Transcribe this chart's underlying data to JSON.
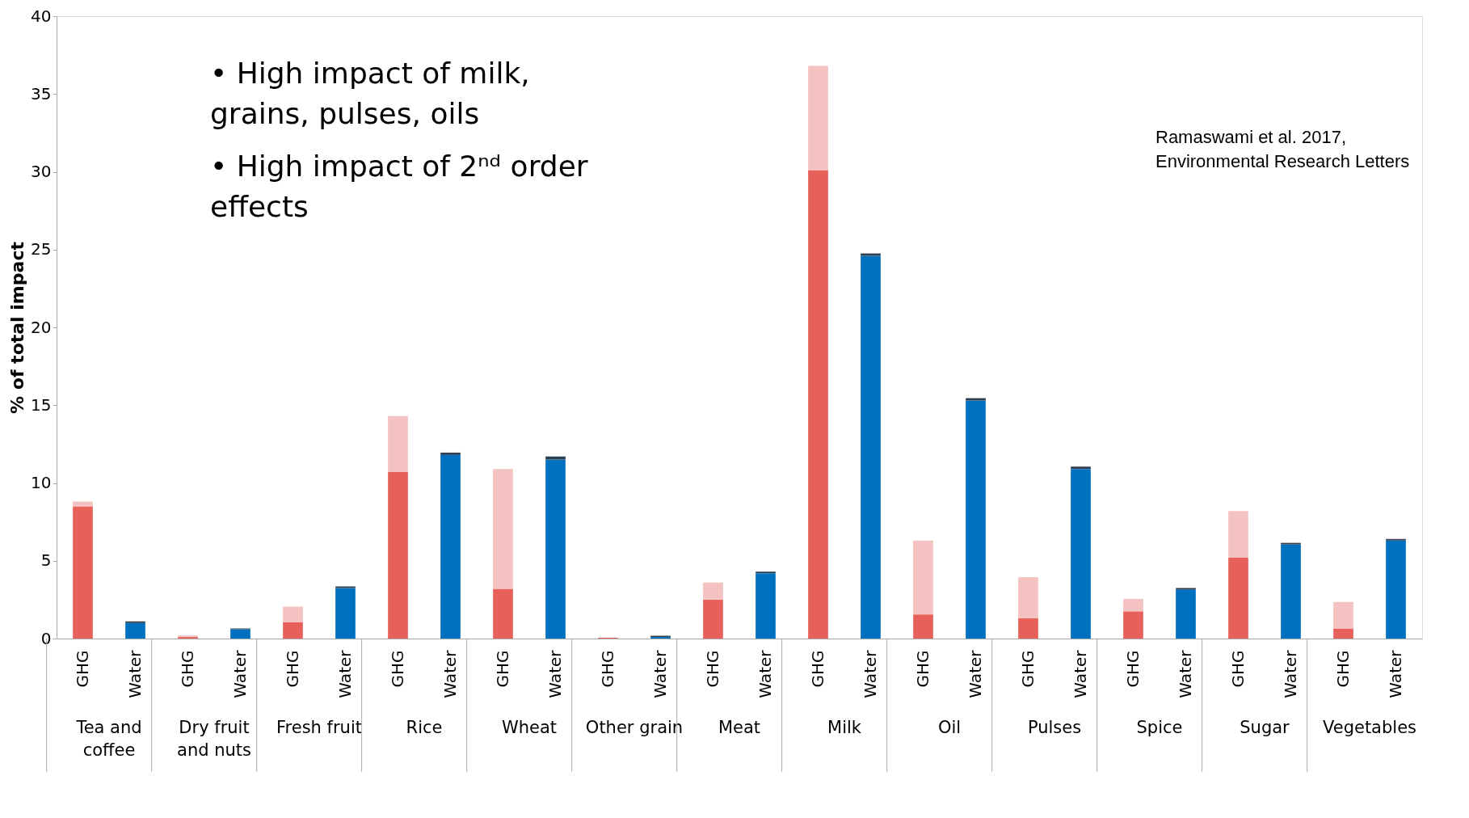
{
  "chart_data": {
    "type": "bar",
    "stacked": true,
    "ylabel": "% of total impact",
    "categories": [
      "GHG",
      "Water",
      "GHG",
      "Water",
      "GHG",
      "Water",
      "GHG",
      "Water",
      "GHG",
      "Water",
      "GHG",
      "Water",
      "GHG",
      "Water",
      "GHG",
      "Water",
      "GHG",
      "Water",
      "GHG",
      "Water",
      "GHG",
      "Water",
      "GHG",
      "Water",
      "GHG",
      "Water"
    ],
    "series": [
      {
        "colors": [
          "#e8605a",
          "#0070c0",
          "#e8605a",
          "#0070c0",
          "#e8605a",
          "#0070c0",
          "#e8605a",
          "#0070c0",
          "#e8605a",
          "#0070c0",
          "#e8605a",
          "#0070c0",
          "#e8605a",
          "#0070c0",
          "#e8605a",
          "#0070c0",
          "#e8605a",
          "#0070c0",
          "#e8605a",
          "#0070c0",
          "#e8605a",
          "#0070c0",
          "#e8605a",
          "#0070c0",
          "#e8605a",
          "#0070c0"
        ],
        "values": [
          8.5,
          1.0,
          0.1,
          0.6,
          1.05,
          3.25,
          10.7,
          11.8,
          3.2,
          11.5,
          0.05,
          0.1,
          2.5,
          4.2,
          30.1,
          24.6,
          1.55,
          15.3,
          1.3,
          10.9,
          1.75,
          3.15,
          5.2,
          6.05,
          0.65,
          6.3
        ]
      },
      {
        "colors": [
          "#f4c2c0",
          "#2f3f52",
          "#f4c2c0",
          "#2f3f52",
          "#f4c2c0",
          "#2f3f52",
          "#f4c2c0",
          "#2f3f52",
          "#f4c2c0",
          "#2f3f52",
          "#f4c2c0",
          "#2f3f52",
          "#f4c2c0",
          "#2f3f52",
          "#f4c2c0",
          "#2f3f52",
          "#f4c2c0",
          "#2f3f52",
          "#f4c2c0",
          "#2f3f52",
          "#f4c2c0",
          "#2f3f52",
          "#f4c2c0",
          "#2f3f52",
          "#f4c2c0",
          "#2f3f52"
        ],
        "values": [
          0.3,
          0.1,
          0.1,
          0.05,
          1.0,
          0.1,
          3.6,
          0.15,
          7.7,
          0.2,
          null,
          0.08,
          1.1,
          0.1,
          6.7,
          0.15,
          4.75,
          0.15,
          2.65,
          0.15,
          0.8,
          0.1,
          3.0,
          0.1,
          1.7,
          0.1
        ]
      }
    ],
    "ylim": [
      0,
      40
    ],
    "yticks": [
      0,
      5,
      10,
      15,
      20,
      25,
      30,
      35,
      40
    ],
    "grid": false,
    "annotations": [
      "Tea and coffee",
      "Dry fruit and nuts",
      "Fresh fruit",
      "Rice",
      "Wheat",
      "Other grain",
      "Meat",
      "Milk",
      "Oil",
      "Pulses",
      "Spice",
      "Sugar",
      "Vegetables",
      "• High impact of milk, grains, pulses, oils",
      "• High impact of 2ⁿᵈ order effects",
      "Ramaswami et al. 2017, Environmental Research Letters"
    ]
  }
}
